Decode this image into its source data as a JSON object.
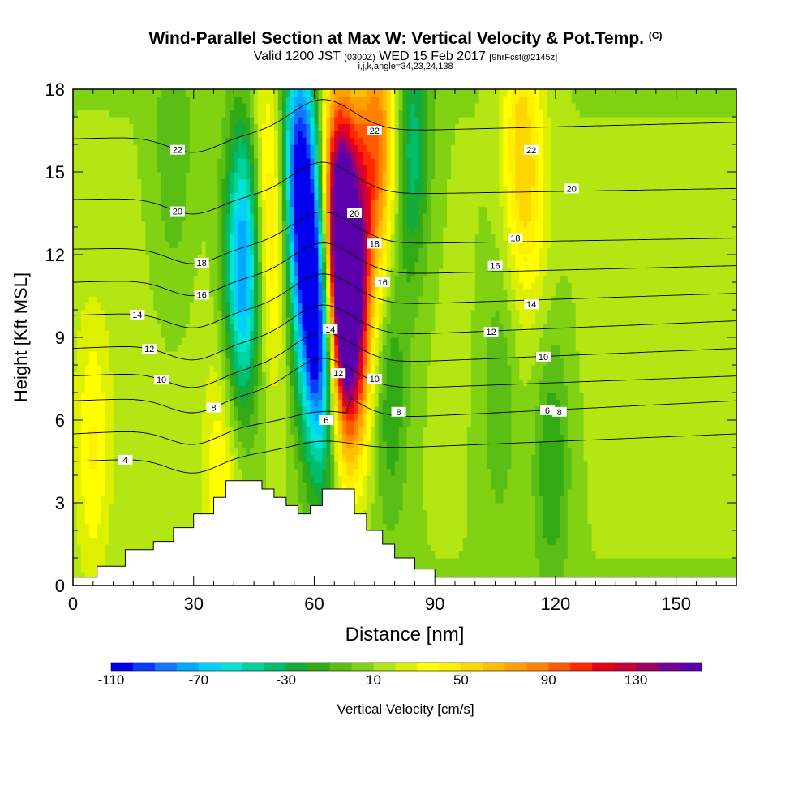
{
  "header": {
    "title": "Wind-Parallel Section at Max W: Vertical Velocity & Pot.Temp.",
    "title_mark": "(C)",
    "subtitle_prefix": "Valid 1200 JST",
    "subtitle_z": "(0300Z)",
    "subtitle_date": "WED 15 Feb 2017",
    "subtitle_fcst": "[9hrFcst@2145z]",
    "subtitle2": "i,j,k,angle=34,23,24,138"
  },
  "chart_data": {
    "type": "heatmap",
    "title": "Wind-Parallel Section at Max W: Vertical Velocity & Pot.Temp.",
    "xlabel": "Distance [nm]",
    "ylabel": "Height [Kft MSL]",
    "xlim": [
      0,
      165
    ],
    "ylim": [
      0,
      18
    ],
    "x_ticks": [
      "0",
      "30",
      "60",
      "90",
      "120",
      "150"
    ],
    "x_tick_values": [
      0,
      30,
      60,
      90,
      120,
      150
    ],
    "y_ticks": [
      "0",
      "3",
      "6",
      "9",
      "12",
      "15",
      "18"
    ],
    "y_tick_values": [
      0,
      3,
      6,
      9,
      12,
      15,
      18
    ],
    "colorbar": {
      "label": "Vertical Velocity [cm/s]",
      "min": -110,
      "max": 130,
      "step": 10,
      "tick_labels": [
        "-110",
        "-70",
        "-30",
        "10",
        "50",
        "90",
        "130"
      ],
      "tick_values": [
        -110,
        -70,
        -30,
        10,
        50,
        90,
        130
      ],
      "colors": [
        "#0000ee",
        "#0a3cff",
        "#1478ff",
        "#00aaff",
        "#00d2ff",
        "#00e6d2",
        "#00d2a0",
        "#00be6e",
        "#14aa3c",
        "#32aa14",
        "#5abe14",
        "#82d214",
        "#b4e614",
        "#dcf000",
        "#ffff00",
        "#fff000",
        "#ffd700",
        "#ffbe00",
        "#ffa000",
        "#ff8200",
        "#ff5a00",
        "#ff2800",
        "#e6001e",
        "#c8003c",
        "#a00064",
        "#780096",
        "#5a00aa"
      ]
    },
    "updrafts": [
      {
        "x": 5,
        "z": 5,
        "w": 30
      },
      {
        "x": 65,
        "z": 14,
        "w": 70
      },
      {
        "x": 67,
        "z": 12,
        "w": 120
      },
      {
        "x": 69,
        "z": 9.5,
        "w": 120
      },
      {
        "x": 74,
        "z": 15,
        "w": 60
      },
      {
        "x": 78,
        "z": 17,
        "w": 40
      },
      {
        "x": 50,
        "z": 13,
        "w": 50
      },
      {
        "x": 45,
        "z": 16,
        "w": 50
      },
      {
        "x": 111,
        "z": 16,
        "w": 40
      },
      {
        "x": 115,
        "z": 14,
        "w": 20
      },
      {
        "x": 37,
        "z": 4,
        "w": 30
      }
    ],
    "downdrafts": [
      {
        "x": 56,
        "z": 15,
        "w": -110
      },
      {
        "x": 60,
        "z": 11,
        "w": -100
      },
      {
        "x": 62,
        "z": 8,
        "w": -70
      },
      {
        "x": 42,
        "z": 11,
        "w": -80
      },
      {
        "x": 44,
        "z": 15,
        "w": -60
      },
      {
        "x": 84,
        "z": 16,
        "w": -50
      },
      {
        "x": 79,
        "z": 7,
        "w": -30
      },
      {
        "x": 106,
        "z": 7,
        "w": -20
      },
      {
        "x": 119,
        "z": 4.5,
        "w": -30
      },
      {
        "x": 25,
        "z": 16,
        "w": -20
      }
    ],
    "terrain": [
      {
        "x": 0,
        "z": 0.3
      },
      {
        "x": 6,
        "z": 0.7
      },
      {
        "x": 13,
        "z": 1.3
      },
      {
        "x": 20,
        "z": 1.6
      },
      {
        "x": 25,
        "z": 2.1
      },
      {
        "x": 30,
        "z": 2.6
      },
      {
        "x": 35,
        "z": 3.2
      },
      {
        "x": 38,
        "z": 3.8
      },
      {
        "x": 44,
        "z": 3.8
      },
      {
        "x": 47,
        "z": 3.5
      },
      {
        "x": 50,
        "z": 3.2
      },
      {
        "x": 53,
        "z": 2.9
      },
      {
        "x": 56,
        "z": 2.6
      },
      {
        "x": 59,
        "z": 2.9
      },
      {
        "x": 62,
        "z": 3.5
      },
      {
        "x": 67,
        "z": 3.5
      },
      {
        "x": 70,
        "z": 2.6
      },
      {
        "x": 73,
        "z": 2.0
      },
      {
        "x": 77,
        "z": 1.5
      },
      {
        "x": 80,
        "z": 1.0
      },
      {
        "x": 85,
        "z": 0.6
      },
      {
        "x": 90,
        "z": 0.3
      },
      {
        "x": 165,
        "z": 0.3
      }
    ],
    "theta_contours": [
      {
        "value": "4",
        "z_west": 4.5,
        "z_east": 5.5,
        "label_x": 13
      },
      {
        "value": "6",
        "z_west": 5.5,
        "z_east": 6.7,
        "label_x": 118
      },
      {
        "value": "8",
        "z_west": 6.7,
        "z_east": 7.6,
        "label_x": 35
      },
      {
        "value": "10",
        "z_west": 7.6,
        "z_east": 8.6,
        "label_x": 22
      },
      {
        "value": "12",
        "z_west": 8.6,
        "z_east": 9.6,
        "label_x": 19
      },
      {
        "value": "14",
        "z_west": 9.8,
        "z_east": 10.6,
        "label_x": 16
      },
      {
        "value": "16",
        "z_west": 11.0,
        "z_east": 11.6,
        "label_x": 32
      },
      {
        "value": "18",
        "z_west": 12.2,
        "z_east": 12.6,
        "label_x": 32
      },
      {
        "value": "20",
        "z_west": 14.0,
        "z_east": 14.4,
        "label_x": 26
      },
      {
        "value": "22",
        "z_west": 16.2,
        "z_east": 16.8,
        "label_x": 26
      }
    ],
    "theta_extra_labels": [
      {
        "value": "22",
        "x": 75,
        "z": 16.5
      },
      {
        "value": "22",
        "x": 114,
        "z": 15.8
      },
      {
        "value": "20",
        "x": 70,
        "z": 13.5
      },
      {
        "value": "20",
        "x": 124,
        "z": 14.4
      },
      {
        "value": "18",
        "x": 75,
        "z": 12.4
      },
      {
        "value": "18",
        "x": 110,
        "z": 12.6
      },
      {
        "value": "16",
        "x": 77,
        "z": 11.0
      },
      {
        "value": "16",
        "x": 105,
        "z": 11.6
      },
      {
        "value": "14",
        "x": 64,
        "z": 9.3
      },
      {
        "value": "14",
        "x": 114,
        "z": 10.2
      },
      {
        "value": "12",
        "x": 66,
        "z": 7.7
      },
      {
        "value": "12",
        "x": 104,
        "z": 9.2
      },
      {
        "value": "10",
        "x": 75,
        "z": 7.5
      },
      {
        "value": "10",
        "x": 117,
        "z": 8.3
      },
      {
        "value": "8",
        "x": 81,
        "z": 6.3
      },
      {
        "value": "8",
        "x": 121,
        "z": 6.3
      },
      {
        "value": "6",
        "x": 63,
        "z": 6.0
      }
    ]
  }
}
